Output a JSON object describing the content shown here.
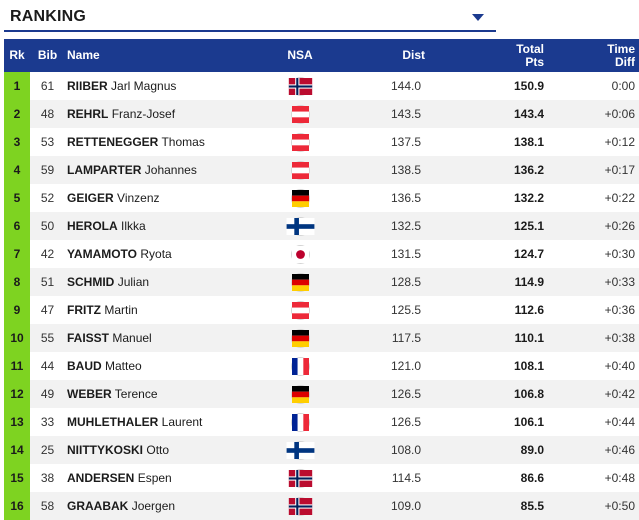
{
  "dropdown": {
    "label": "RANKING"
  },
  "headers": {
    "rk": "Rk",
    "bib": "Bib",
    "name": "Name",
    "nsa": "NSA",
    "dist": "Dist",
    "pts_1": "Total",
    "pts_2": "Pts",
    "diff_1": "Time",
    "diff_2": "Diff"
  },
  "colors": {
    "header_bg": "#1b3a8f",
    "rank_bg": "#7ed321"
  },
  "rows": [
    {
      "rk": "1",
      "bib": "61",
      "last": "RIIBER",
      "first": "Jarl Magnus",
      "nsa": "NOR",
      "flag_icon": "norway-flag-icon",
      "dist": "144.0",
      "pts": "150.9",
      "diff": "0:00"
    },
    {
      "rk": "2",
      "bib": "48",
      "last": "REHRL",
      "first": "Franz-Josef",
      "nsa": "AUT",
      "flag_icon": "austria-flag-icon",
      "dist": "143.5",
      "pts": "143.4",
      "diff": "+0:06"
    },
    {
      "rk": "3",
      "bib": "53",
      "last": "RETTENEGGER",
      "first": "Thomas",
      "nsa": "AUT",
      "flag_icon": "austria-flag-icon",
      "dist": "137.5",
      "pts": "138.1",
      "diff": "+0:12"
    },
    {
      "rk": "4",
      "bib": "59",
      "last": "LAMPARTER",
      "first": "Johannes",
      "nsa": "AUT",
      "flag_icon": "austria-flag-icon",
      "dist": "138.5",
      "pts": "136.2",
      "diff": "+0:17"
    },
    {
      "rk": "5",
      "bib": "52",
      "last": "GEIGER",
      "first": "Vinzenz",
      "nsa": "GER",
      "flag_icon": "germany-flag-icon",
      "dist": "136.5",
      "pts": "132.2",
      "diff": "+0:22"
    },
    {
      "rk": "6",
      "bib": "50",
      "last": "HEROLA",
      "first": "Ilkka",
      "nsa": "FIN",
      "flag_icon": "finland-flag-icon",
      "dist": "132.5",
      "pts": "125.1",
      "diff": "+0:26"
    },
    {
      "rk": "7",
      "bib": "42",
      "last": "YAMAMOTO",
      "first": "Ryota",
      "nsa": "JPN",
      "flag_icon": "japan-flag-icon",
      "dist": "131.5",
      "pts": "124.7",
      "diff": "+0:30"
    },
    {
      "rk": "8",
      "bib": "51",
      "last": "SCHMID",
      "first": "Julian",
      "nsa": "GER",
      "flag_icon": "germany-flag-icon",
      "dist": "128.5",
      "pts": "114.9",
      "diff": "+0:33"
    },
    {
      "rk": "9",
      "bib": "47",
      "last": "FRITZ",
      "first": "Martin",
      "nsa": "AUT",
      "flag_icon": "austria-flag-icon",
      "dist": "125.5",
      "pts": "112.6",
      "diff": "+0:36"
    },
    {
      "rk": "10",
      "bib": "55",
      "last": "FAISST",
      "first": "Manuel",
      "nsa": "GER",
      "flag_icon": "germany-flag-icon",
      "dist": "117.5",
      "pts": "110.1",
      "diff": "+0:38"
    },
    {
      "rk": "11",
      "bib": "44",
      "last": "BAUD",
      "first": "Matteo",
      "nsa": "FRA",
      "flag_icon": "france-flag-icon",
      "dist": "121.0",
      "pts": "108.1",
      "diff": "+0:40"
    },
    {
      "rk": "12",
      "bib": "49",
      "last": "WEBER",
      "first": "Terence",
      "nsa": "GER",
      "flag_icon": "germany-flag-icon",
      "dist": "126.5",
      "pts": "106.8",
      "diff": "+0:42"
    },
    {
      "rk": "13",
      "bib": "33",
      "last": "MUHLETHALER",
      "first": "Laurent",
      "nsa": "FRA",
      "flag_icon": "france-flag-icon",
      "dist": "126.5",
      "pts": "106.1",
      "diff": "+0:44"
    },
    {
      "rk": "14",
      "bib": "25",
      "last": "NIITTYKOSKI",
      "first": "Otto",
      "nsa": "FIN",
      "flag_icon": "finland-flag-icon",
      "dist": "108.0",
      "pts": "89.0",
      "diff": "+0:46"
    },
    {
      "rk": "15",
      "bib": "38",
      "last": "ANDERSEN",
      "first": "Espen",
      "nsa": "NOR",
      "flag_icon": "norway-flag-icon",
      "dist": "114.5",
      "pts": "86.6",
      "diff": "+0:48"
    },
    {
      "rk": "16",
      "bib": "58",
      "last": "GRAABAK",
      "first": "Joergen",
      "nsa": "NOR",
      "flag_icon": "norway-flag-icon",
      "dist": "109.0",
      "pts": "85.5",
      "diff": "+0:50"
    }
  ]
}
